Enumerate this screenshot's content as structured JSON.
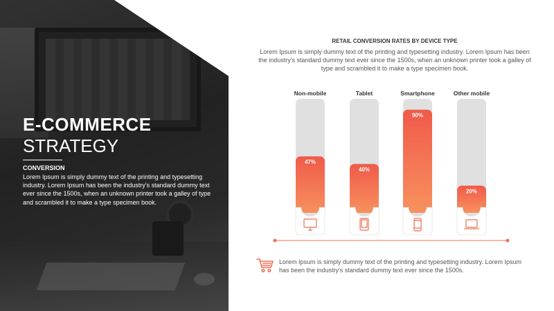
{
  "left": {
    "title": "E-COMMERCE",
    "subtitle": "STRATEGY",
    "section_label": "CONVERSION",
    "section_body": "Lorem Ipsum is simply dummy text of the printing and typesetting industry. Lorem Ipsum has been the industry's standard dummy text ever since the 1500s, when an unknown printer took a galley of type and scrambled it to make a type specimen book."
  },
  "chart_data": {
    "type": "bar",
    "title": "RETAIL CONVERSION RATES BY DEVICE TYPE",
    "categories": [
      "Non-mobile",
      "Tablet",
      "Smartphone",
      "Other mobile"
    ],
    "values": [
      47,
      40,
      90,
      20
    ],
    "value_labels": [
      "47%",
      "40%",
      "90%",
      "20%"
    ],
    "icons": [
      "monitor-icon",
      "tablet-icon",
      "smartphone-icon",
      "laptop-icon"
    ],
    "ylim": [
      0,
      100
    ],
    "grid": false,
    "colors": {
      "bar_top": "#f05a4a",
      "bar_bottom": "#f7915e",
      "track": "#e0e0e0",
      "axis": "#f06f55"
    }
  },
  "chart_desc": "Lorem Ipsum is simply dummy text of the printing and typesetting industry. Lorem Ipsum has been the industry's standard dummy text ever since the 1500s, when an unknown printer took a galley of type and scrambled it to make a type specimen book.",
  "footer": {
    "icon": "shopping-cart-icon",
    "text": "Lorem Ipsum is simply dummy text of the printing and typesetting industry. Lorem Ipsum has been the industry's standard dummy text ever since the 1500s."
  }
}
